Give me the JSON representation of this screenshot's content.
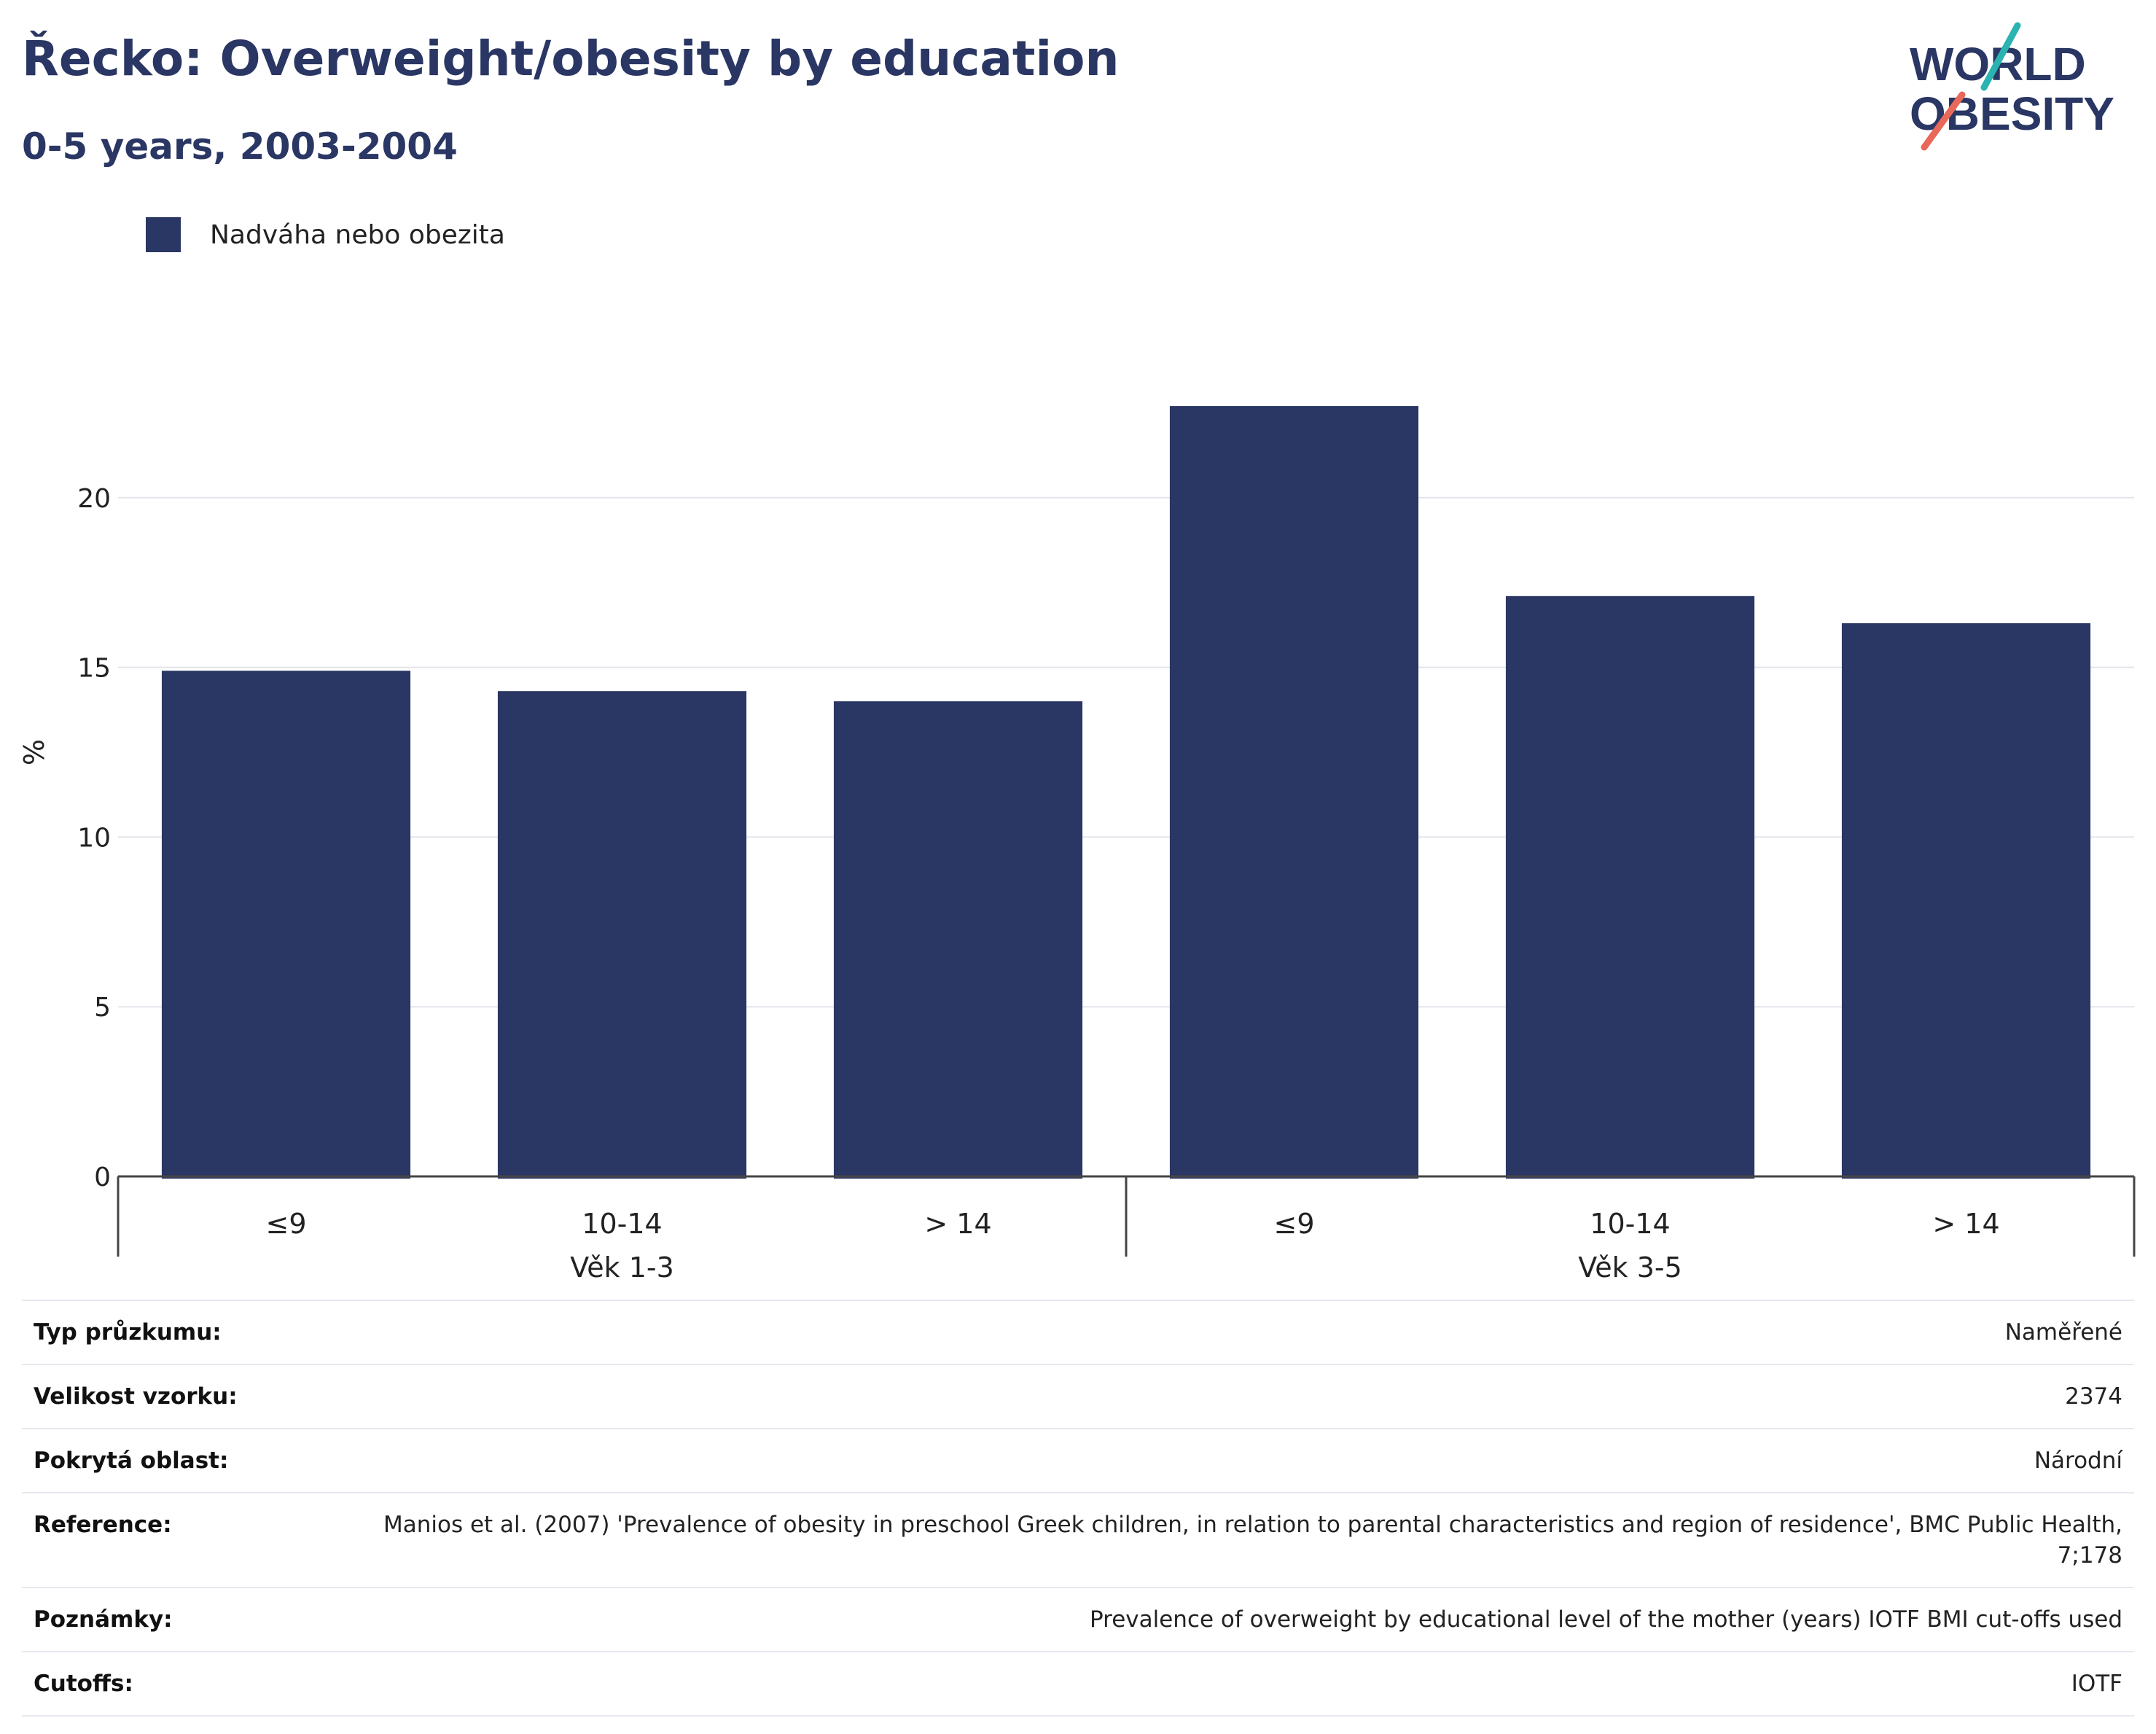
{
  "header": {
    "title": "Řecko: Overweight/obesity by education",
    "subtitle": "0-5 years, 2003-2004"
  },
  "logo": {
    "line1": "WORLD",
    "line2": "OBESITY",
    "colors": {
      "navy": "#2a3663",
      "teal": "#2ab3b0",
      "coral": "#e8685a"
    }
  },
  "chart_data": {
    "type": "bar",
    "title": "Řecko: Overweight/obesity by education",
    "ylabel": "%",
    "ylim": [
      0,
      25
    ],
    "yticks": [
      0,
      5,
      10,
      15,
      20
    ],
    "grid": true,
    "legend_position": "top-left",
    "bar_color": "#2a3663",
    "groups": [
      {
        "label": "Věk 1-3",
        "categories": [
          "≤9",
          "10-14",
          "> 14"
        ]
      },
      {
        "label": "Věk 3-5",
        "categories": [
          "≤9",
          "10-14",
          "> 14"
        ]
      }
    ],
    "series": [
      {
        "name": "Nadváha nebo obezita",
        "values": [
          14.9,
          14.3,
          14.0,
          22.7,
          17.1,
          16.3
        ]
      }
    ]
  },
  "meta": [
    {
      "key": "Typ průzkumu:",
      "value": "Naměřené"
    },
    {
      "key": "Velikost vzorku:",
      "value": "2374"
    },
    {
      "key": "Pokrytá oblast:",
      "value": "Národní"
    },
    {
      "key": "Reference:",
      "value": "Manios et al. (2007) 'Prevalence of obesity in preschool Greek children, in relation to parental characteristics and region of residence', BMC Public Health, 7;178"
    },
    {
      "key": "Poznámky:",
      "value": "Prevalence of overweight by educational level of the mother (years) IOTF BMI cut-offs used"
    },
    {
      "key": "Cutoffs:",
      "value": "IOTF"
    }
  ]
}
